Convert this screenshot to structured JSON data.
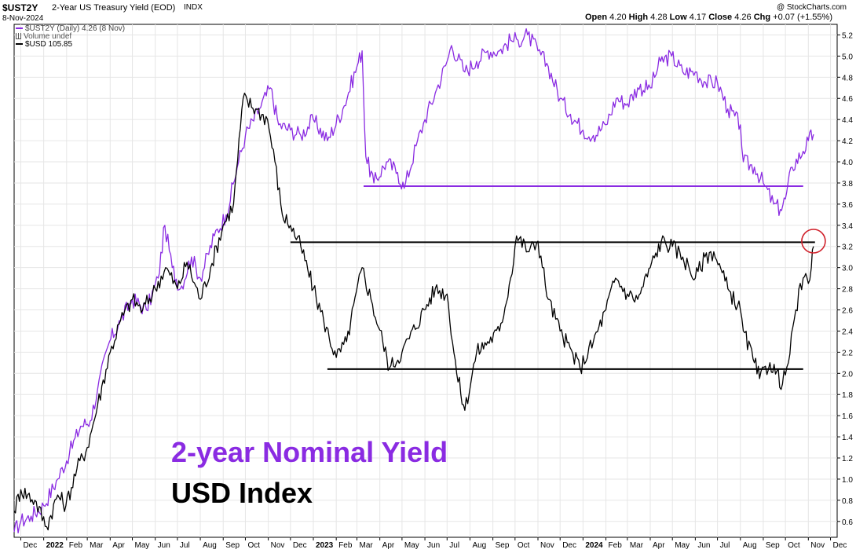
{
  "header": {
    "symbol": "$UST2Y",
    "title": "2-Year US Treasury Yield (EOD)",
    "exchange": "INDX",
    "date": "8-Nov-2024",
    "watermark": "@ StockCharts.com",
    "open_label": "Open",
    "open": "4.20",
    "high_label": "High",
    "high": "4.28",
    "low_label": "Low",
    "low": "4.17",
    "close_label": "Close",
    "close": "4.26",
    "chg_label": "Chg",
    "chg": "+0.07 (+1.55%)"
  },
  "legend": {
    "ust2y": "$UST2Y (Daily) 4.26 (8 Nov)",
    "volume": "Volume undef",
    "usd": "$USD 105.85"
  },
  "annotations": {
    "yield_label": "2-year Nominal Yield",
    "usd_label": "USD Index"
  },
  "colors": {
    "yield": "#8a2be2",
    "usd": "#000000",
    "circle": "#d0202a",
    "gridline": "#e6e6e6"
  },
  "chart_data": {
    "type": "line",
    "ylim": [
      0.45,
      5.3
    ],
    "y_ticks": [
      "0.6",
      "0.8",
      "1.0",
      "1.2",
      "1.4",
      "1.6",
      "1.8",
      "2.0",
      "2.2",
      "2.4",
      "2.6",
      "2.8",
      "3.0",
      "3.2",
      "3.4",
      "3.6",
      "3.8",
      "4.0",
      "4.2",
      "4.4",
      "4.6",
      "4.8",
      "5.0",
      "5.2"
    ],
    "x_range": [
      "2021-11-22",
      "2024-12-10"
    ],
    "x_ticks": [
      {
        "date": "2021-12-01",
        "label": "Dec",
        "bold": false
      },
      {
        "date": "2022-01-01",
        "label": "2022",
        "bold": true
      },
      {
        "date": "2022-02-01",
        "label": "Feb",
        "bold": false
      },
      {
        "date": "2022-03-01",
        "label": "Mar",
        "bold": false
      },
      {
        "date": "2022-04-01",
        "label": "Apr",
        "bold": false
      },
      {
        "date": "2022-05-01",
        "label": "May",
        "bold": false
      },
      {
        "date": "2022-06-01",
        "label": "Jun",
        "bold": false
      },
      {
        "date": "2022-07-01",
        "label": "Jul",
        "bold": false
      },
      {
        "date": "2022-08-01",
        "label": "Aug",
        "bold": false
      },
      {
        "date": "2022-09-01",
        "label": "Sep",
        "bold": false
      },
      {
        "date": "2022-10-01",
        "label": "Oct",
        "bold": false
      },
      {
        "date": "2022-11-01",
        "label": "Nov",
        "bold": false
      },
      {
        "date": "2022-12-01",
        "label": "Dec",
        "bold": false
      },
      {
        "date": "2023-01-01",
        "label": "2023",
        "bold": true
      },
      {
        "date": "2023-02-01",
        "label": "Feb",
        "bold": false
      },
      {
        "date": "2023-03-01",
        "label": "Mar",
        "bold": false
      },
      {
        "date": "2023-04-01",
        "label": "Apr",
        "bold": false
      },
      {
        "date": "2023-05-01",
        "label": "May",
        "bold": false
      },
      {
        "date": "2023-06-01",
        "label": "Jun",
        "bold": false
      },
      {
        "date": "2023-07-01",
        "label": "Jul",
        "bold": false
      },
      {
        "date": "2023-08-01",
        "label": "Aug",
        "bold": false
      },
      {
        "date": "2023-09-01",
        "label": "Sep",
        "bold": false
      },
      {
        "date": "2023-10-01",
        "label": "Oct",
        "bold": false
      },
      {
        "date": "2023-11-01",
        "label": "Nov",
        "bold": false
      },
      {
        "date": "2023-12-01",
        "label": "Dec",
        "bold": false
      },
      {
        "date": "2024-01-01",
        "label": "2024",
        "bold": true
      },
      {
        "date": "2024-02-01",
        "label": "Feb",
        "bold": false
      },
      {
        "date": "2024-03-01",
        "label": "Mar",
        "bold": false
      },
      {
        "date": "2024-04-01",
        "label": "Apr",
        "bold": false
      },
      {
        "date": "2024-05-01",
        "label": "May",
        "bold": false
      },
      {
        "date": "2024-06-01",
        "label": "Jun",
        "bold": false
      },
      {
        "date": "2024-07-01",
        "label": "Jul",
        "bold": false
      },
      {
        "date": "2024-08-01",
        "label": "Aug",
        "bold": false
      },
      {
        "date": "2024-09-01",
        "label": "Sep",
        "bold": false
      },
      {
        "date": "2024-10-01",
        "label": "Oct",
        "bold": false
      },
      {
        "date": "2024-11-01",
        "label": "Nov",
        "bold": false
      },
      {
        "date": "2024-12-01",
        "label": "Dec",
        "bold": false
      }
    ],
    "series": [
      {
        "name": "$UST2Y",
        "x": [
          "2021-11-22",
          "2021-12-01",
          "2021-12-15",
          "2022-01-01",
          "2022-01-20",
          "2022-02-05",
          "2022-02-20",
          "2022-03-05",
          "2022-03-15",
          "2022-03-31",
          "2022-04-15",
          "2022-05-01",
          "2022-05-20",
          "2022-06-05",
          "2022-06-14",
          "2022-06-24",
          "2022-07-05",
          "2022-07-20",
          "2022-08-01",
          "2022-08-20",
          "2022-09-05",
          "2022-09-20",
          "2022-10-01",
          "2022-10-20",
          "2022-11-04",
          "2022-11-15",
          "2022-12-01",
          "2022-12-15",
          "2023-01-01",
          "2023-01-20",
          "2023-02-10",
          "2023-03-01",
          "2023-03-08",
          "2023-03-13",
          "2023-03-24",
          "2023-04-10",
          "2023-04-25",
          "2023-05-04",
          "2023-05-20",
          "2023-06-01",
          "2023-06-15",
          "2023-07-01",
          "2023-07-07",
          "2023-07-25",
          "2023-08-10",
          "2023-08-25",
          "2023-09-10",
          "2023-09-25",
          "2023-10-05",
          "2023-10-18",
          "2023-11-01",
          "2023-11-15",
          "2023-12-01",
          "2023-12-15",
          "2024-01-01",
          "2024-01-15",
          "2024-02-01",
          "2024-02-15",
          "2024-03-01",
          "2024-03-15",
          "2024-04-01",
          "2024-04-15",
          "2024-04-30",
          "2024-05-15",
          "2024-06-01",
          "2024-06-15",
          "2024-07-01",
          "2024-07-15",
          "2024-08-01",
          "2024-08-05",
          "2024-08-20",
          "2024-09-01",
          "2024-09-15",
          "2024-09-24",
          "2024-10-01",
          "2024-10-10",
          "2024-10-25",
          "2024-11-01",
          "2024-11-08"
        ],
        "values": [
          0.5,
          0.6,
          0.65,
          0.75,
          1.0,
          1.25,
          1.5,
          1.55,
          1.85,
          2.3,
          2.5,
          2.7,
          2.6,
          2.9,
          3.4,
          3.0,
          2.8,
          3.1,
          2.9,
          3.3,
          3.5,
          3.95,
          4.25,
          4.5,
          4.7,
          4.35,
          4.3,
          4.25,
          4.4,
          4.2,
          4.5,
          4.9,
          5.05,
          4.05,
          3.8,
          4.0,
          3.9,
          3.75,
          4.15,
          4.4,
          4.65,
          4.95,
          5.1,
          4.85,
          4.95,
          5.05,
          5.05,
          5.15,
          5.15,
          5.2,
          5.05,
          4.9,
          4.6,
          4.45,
          4.3,
          4.25,
          4.35,
          4.6,
          4.55,
          4.7,
          4.7,
          4.95,
          5.0,
          4.85,
          4.85,
          4.75,
          4.75,
          4.5,
          4.35,
          4.0,
          3.95,
          3.8,
          3.6,
          3.55,
          3.65,
          3.95,
          4.1,
          4.2,
          4.26
        ]
      },
      {
        "name": "$USD",
        "x": [
          "2021-11-22",
          "2021-12-01",
          "2021-12-20",
          "2022-01-05",
          "2022-01-20",
          "2022-01-31",
          "2022-02-15",
          "2022-03-01",
          "2022-03-15",
          "2022-04-01",
          "2022-04-15",
          "2022-05-01",
          "2022-05-15",
          "2022-06-01",
          "2022-06-15",
          "2022-07-01",
          "2022-07-14",
          "2022-08-01",
          "2022-08-15",
          "2022-09-01",
          "2022-09-15",
          "2022-09-28",
          "2022-10-15",
          "2022-10-31",
          "2022-11-10",
          "2022-11-20",
          "2022-12-01",
          "2022-12-15",
          "2023-01-01",
          "2023-01-15",
          "2023-02-01",
          "2023-02-15",
          "2023-03-08",
          "2023-03-20",
          "2023-04-05",
          "2023-04-14",
          "2023-05-01",
          "2023-05-31",
          "2023-06-15",
          "2023-07-01",
          "2023-07-14",
          "2023-07-25",
          "2023-08-10",
          "2023-08-25",
          "2023-09-10",
          "2023-09-25",
          "2023-10-03",
          "2023-10-20",
          "2023-11-01",
          "2023-11-15",
          "2023-12-01",
          "2023-12-28",
          "2024-01-15",
          "2024-02-01",
          "2024-02-14",
          "2024-03-01",
          "2024-03-15",
          "2024-04-01",
          "2024-04-16",
          "2024-05-01",
          "2024-05-15",
          "2024-06-01",
          "2024-06-14",
          "2024-06-26",
          "2024-07-15",
          "2024-08-01",
          "2024-08-05",
          "2024-08-20",
          "2024-08-27",
          "2024-09-10",
          "2024-09-27",
          "2024-10-05",
          "2024-10-15",
          "2024-10-25",
          "2024-11-01",
          "2024-11-05",
          "2024-11-08"
        ],
        "values": [
          0.7,
          0.9,
          0.8,
          0.55,
          0.85,
          0.75,
          1.1,
          1.3,
          1.7,
          2.2,
          2.5,
          2.7,
          2.6,
          2.8,
          3.0,
          2.8,
          3.05,
          2.7,
          3.0,
          3.4,
          3.6,
          4.6,
          4.5,
          4.4,
          4.0,
          3.5,
          3.4,
          3.2,
          2.8,
          2.5,
          2.15,
          2.3,
          3.0,
          2.7,
          2.3,
          2.05,
          2.2,
          2.6,
          2.8,
          2.75,
          2.0,
          1.65,
          2.2,
          2.3,
          2.4,
          2.9,
          3.3,
          3.15,
          3.25,
          2.7,
          2.4,
          2.05,
          2.3,
          2.6,
          2.9,
          2.75,
          2.7,
          3.0,
          3.25,
          3.2,
          3.1,
          2.9,
          3.1,
          3.15,
          2.8,
          2.6,
          2.4,
          2.1,
          1.95,
          2.1,
          1.9,
          2.1,
          2.6,
          2.9,
          2.85,
          3.0,
          3.2
        ]
      }
    ],
    "reference_lines": [
      {
        "series": "$UST2Y",
        "y": 3.77,
        "x_start": "2023-03-10",
        "x_end": "2024-10-25"
      },
      {
        "series": "$USD",
        "y": 3.24,
        "x_start": "2022-12-01",
        "x_end": "2024-11-10"
      },
      {
        "series": "$USD",
        "y": 2.04,
        "x_start": "2023-01-20",
        "x_end": "2024-10-25"
      }
    ],
    "highlight_circle": {
      "x": "2024-11-08",
      "y": 3.25
    }
  }
}
